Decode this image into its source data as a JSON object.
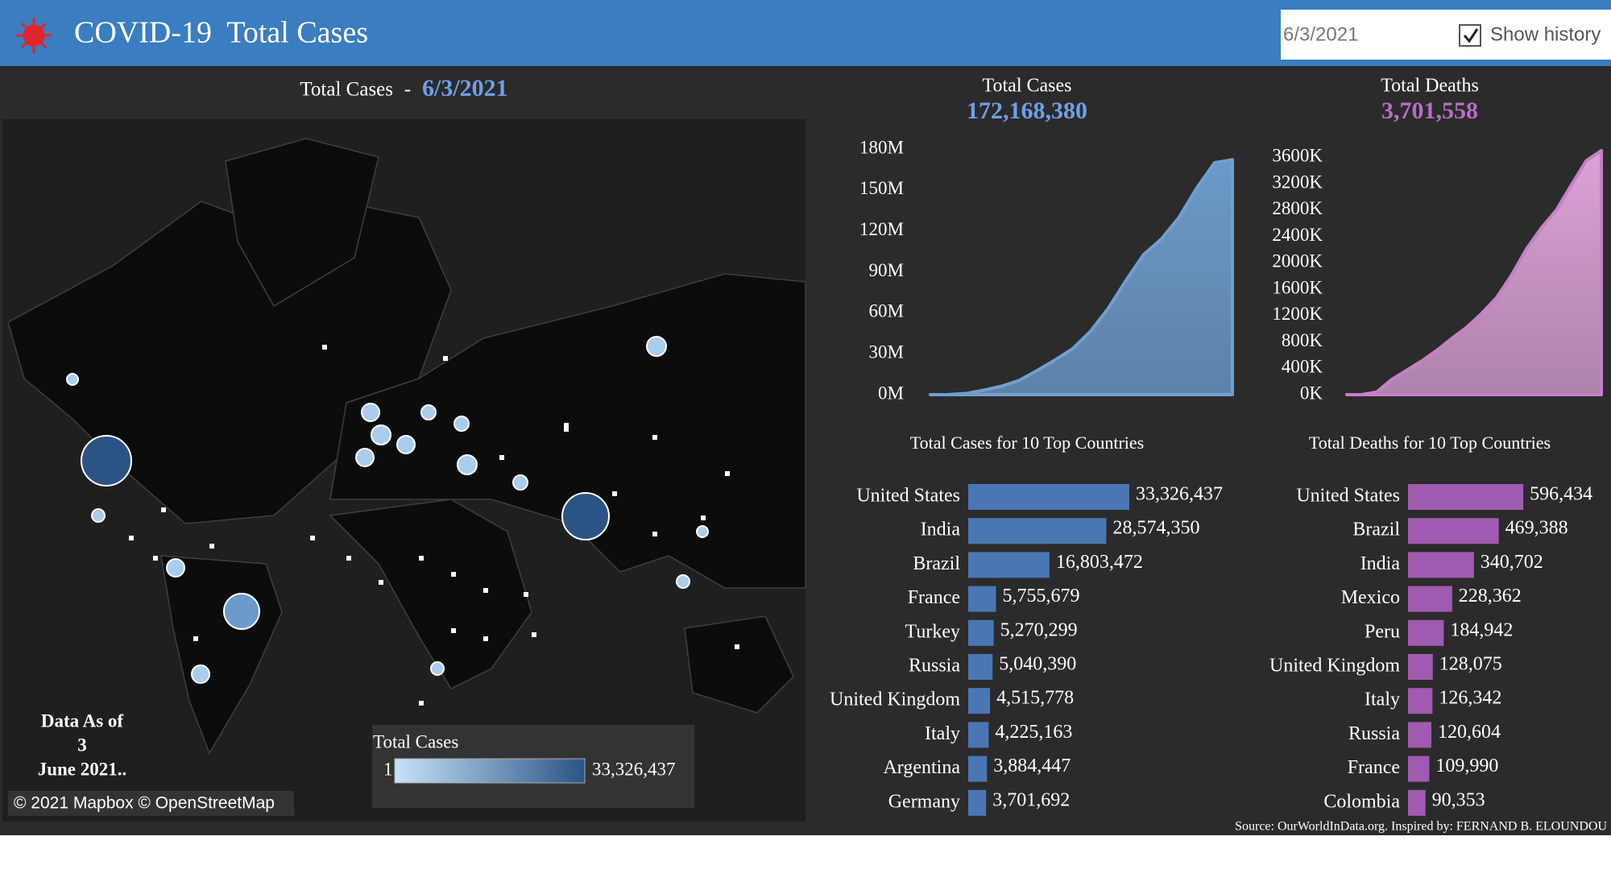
{
  "header": {
    "title": "COVID-19  Total Cases",
    "date_input": "6/3/2021",
    "checkbox_label": "Show history"
  },
  "map": {
    "title": "Total Cases",
    "separator": "-",
    "date": "6/3/2021",
    "as_of": [
      "Data As of",
      "3",
      "June 2021.."
    ],
    "attribution": "© 2021 Mapbox © OpenStreetMap",
    "legend": {
      "title": "Total Cases",
      "min": 1,
      "max": {
        "value": 33326437,
        "label": "33,326,437"
      }
    }
  },
  "chart_data": [
    {
      "type": "area",
      "title": "Total Cases",
      "total": {
        "value": 172168380,
        "label": "172,168,380"
      },
      "color": "#6f9fd1",
      "values": [
        10000,
        85000,
        860000,
        3300000,
        6200000,
        10400000,
        17600000,
        25300000,
        33600000,
        46200000,
        63000000,
        83500000,
        102600000,
        114000000,
        130000000,
        151500000,
        170000000,
        172168380
      ],
      "ylim": [
        0,
        180000000
      ],
      "yticks": [
        {
          "value": 0,
          "label": "0M"
        },
        {
          "value": 30000000,
          "label": "30M"
        },
        {
          "value": 60000000,
          "label": "60M"
        },
        {
          "value": 90000000,
          "label": "90M"
        },
        {
          "value": 120000000,
          "label": "120M"
        },
        {
          "value": 150000000,
          "label": "150M"
        },
        {
          "value": 180000000,
          "label": "180M"
        }
      ]
    },
    {
      "type": "area",
      "title": "Total Deaths",
      "total": {
        "value": 3701558,
        "label": "3,701,558"
      },
      "color": "#c77fc9",
      "values": [
        0,
        2000,
        40000,
        230000,
        370000,
        510000,
        670000,
        850000,
        1020000,
        1230000,
        1470000,
        1810000,
        2210000,
        2530000,
        2800000,
        3180000,
        3550000,
        3701558
      ],
      "ylim": [
        0,
        3750000
      ],
      "yticks": [
        {
          "value": 0,
          "label": "0K"
        },
        {
          "value": 400000,
          "label": "400K"
        },
        {
          "value": 800000,
          "label": "800K"
        },
        {
          "value": 1200000,
          "label": "1200K"
        },
        {
          "value": 1600000,
          "label": "1600K"
        },
        {
          "value": 2000000,
          "label": "2000K"
        },
        {
          "value": 2400000,
          "label": "2400K"
        },
        {
          "value": 2800000,
          "label": "2800K"
        },
        {
          "value": 3200000,
          "label": "3200K"
        },
        {
          "value": 3600000,
          "label": "3600K"
        }
      ]
    },
    {
      "type": "hbar",
      "title": "Total Cases for 10 Top Countries",
      "color": "#4a77b4",
      "categories": [
        "United States",
        "India",
        "Brazil",
        "France",
        "Turkey",
        "Russia",
        "United Kingdom",
        "Italy",
        "Argentina",
        "Germany"
      ],
      "values": [
        33326437,
        28574350,
        16803472,
        5755679,
        5270299,
        5040390,
        4515778,
        4225163,
        3884447,
        3701692
      ],
      "value_labels": [
        "33,326,437",
        "28,574,350",
        "16,803,472",
        "5,755,679",
        "5,270,299",
        "5,040,390",
        "4,515,778",
        "4,225,163",
        "3,884,447",
        "3,701,692"
      ],
      "xlim": [
        0,
        40000000
      ]
    },
    {
      "type": "hbar",
      "title": "Total Deaths for 10 Top Countries",
      "color": "#a05bb0",
      "categories": [
        "United States",
        "Brazil",
        "India",
        "Mexico",
        "Peru",
        "United Kingdom",
        "Italy",
        "Russia",
        "France",
        "Colombia"
      ],
      "values": [
        596434,
        469388,
        340702,
        228362,
        184942,
        128075,
        126342,
        120604,
        109990,
        90353
      ],
      "value_labels": [
        "596,434",
        "469,388",
        "340,702",
        "228,362",
        "184,942",
        "128,075",
        "126,342",
        "120,604",
        "109,990",
        "90,353"
      ],
      "xlim": [
        0,
        800000
      ]
    }
  ],
  "source": "Source: OurWorldInData.org. Inspired by: FERNAND B. ELOUNDOU"
}
